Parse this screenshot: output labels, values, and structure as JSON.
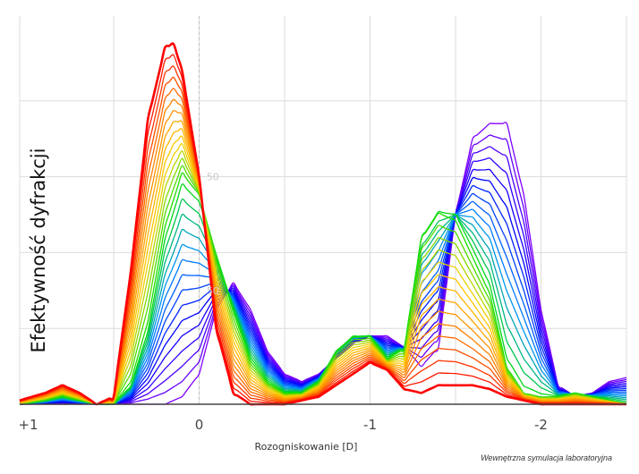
{
  "chart_data": {
    "type": "line",
    "title": "",
    "xlabel": "Rozogniskowanie [D]",
    "ylabel": "Efektywność dyfrakcji",
    "x_ticks": [
      "+1",
      "0",
      "-1",
      "-2"
    ],
    "x_tick_values": [
      1,
      0,
      -1,
      -2
    ],
    "xlim": [
      1.05,
      -2.5
    ],
    "ylim": [
      0,
      1
    ],
    "grid": true,
    "inner_axis_labels": [
      "50",
      "50"
    ],
    "palette": [
      "#ff0000",
      "#ff8000",
      "#ffd000",
      "#00e000",
      "#0090ff",
      "#0000ff",
      "#8000ff"
    ],
    "family_count": 30,
    "series": [
      {
        "stroke": "#ff0000",
        "x": [
          1.05,
          0.9,
          0.8,
          0.7,
          0.6,
          0.5,
          0.4,
          0.3,
          0.2,
          0.15,
          0.1,
          0.0,
          -0.1,
          -0.2,
          -0.3,
          -0.4,
          -0.5,
          -0.6,
          -0.7,
          -0.8,
          -0.9,
          -1.0,
          -1.1,
          -1.2,
          -1.3,
          -1.4,
          -1.5,
          -1.6,
          -1.7,
          -1.8,
          -1.9,
          -2.0,
          -2.1,
          -2.2,
          -2.3,
          -2.4,
          -2.5
        ],
        "y": [
          0.01,
          0.03,
          0.05,
          0.03,
          0.0,
          0.02,
          0.35,
          0.75,
          0.94,
          0.95,
          0.88,
          0.6,
          0.2,
          0.03,
          0.0,
          0.0,
          0.0,
          0.01,
          0.02,
          0.05,
          0.08,
          0.11,
          0.09,
          0.04,
          0.03,
          0.05,
          0.05,
          0.05,
          0.04,
          0.02,
          0.01,
          0.0,
          0.0,
          0.0,
          0.0,
          0.0,
          0.0
        ]
      },
      {
        "stroke": "#00e000",
        "x": [
          1.05,
          0.9,
          0.8,
          0.7,
          0.6,
          0.5,
          0.4,
          0.3,
          0.2,
          0.1,
          0.0,
          -0.1,
          -0.2,
          -0.3,
          -0.4,
          -0.5,
          -0.6,
          -0.7,
          -0.8,
          -0.9,
          -1.0,
          -1.1,
          -1.2,
          -1.3,
          -1.4,
          -1.5,
          -1.6,
          -1.7,
          -1.8,
          -1.9,
          -2.0,
          -2.1,
          -2.2,
          -2.3,
          -2.4,
          -2.5
        ],
        "y": [
          0.0,
          0.01,
          0.02,
          0.01,
          0.0,
          0.0,
          0.05,
          0.2,
          0.45,
          0.6,
          0.55,
          0.4,
          0.25,
          0.12,
          0.06,
          0.03,
          0.03,
          0.06,
          0.14,
          0.18,
          0.18,
          0.12,
          0.15,
          0.45,
          0.52,
          0.5,
          0.4,
          0.3,
          0.1,
          0.03,
          0.02,
          0.02,
          0.03,
          0.02,
          0.01,
          0.0
        ]
      },
      {
        "stroke": "#8000ff",
        "x": [
          1.05,
          0.9,
          0.8,
          0.7,
          0.6,
          0.5,
          0.4,
          0.3,
          0.2,
          0.1,
          0.0,
          -0.1,
          -0.2,
          -0.3,
          -0.4,
          -0.5,
          -0.6,
          -0.7,
          -0.8,
          -0.9,
          -1.0,
          -1.1,
          -1.2,
          -1.3,
          -1.4,
          -1.5,
          -1.6,
          -1.7,
          -1.8,
          -1.9,
          -2.0,
          -2.1,
          -2.2,
          -2.3,
          -2.4,
          -2.5
        ],
        "y": [
          0.0,
          0.0,
          0.0,
          0.0,
          0.0,
          0.0,
          0.0,
          0.0,
          0.0,
          0.02,
          0.08,
          0.25,
          0.32,
          0.25,
          0.14,
          0.08,
          0.06,
          0.08,
          0.12,
          0.16,
          0.18,
          0.18,
          0.15,
          0.1,
          0.15,
          0.5,
          0.7,
          0.74,
          0.74,
          0.55,
          0.25,
          0.05,
          0.02,
          0.03,
          0.06,
          0.07
        ]
      }
    ]
  },
  "credit": "Wewnętrzna symulacja laboratoryjna"
}
